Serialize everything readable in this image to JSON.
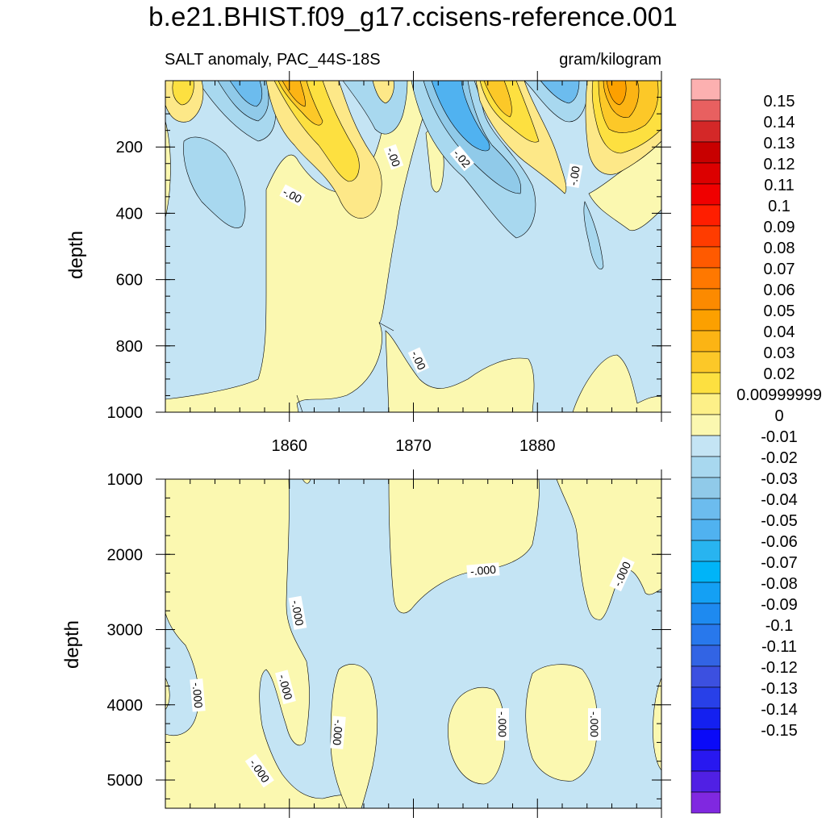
{
  "chart_data": {
    "type": "contour",
    "title": "b.e21.BHIST.f09_g17.ccisens-reference.001",
    "variable_label": "SALT anomaly, PAC_44S-18S",
    "units": "gram/kilogram",
    "x_ticks": [
      "1860",
      "1870",
      "1880"
    ],
    "xlim": [
      1850,
      1890
    ],
    "panels": [
      {
        "name": "upper",
        "ylabel": "depth",
        "ylim": [
          0,
          1000
        ],
        "y_ticks": [
          200,
          400,
          600,
          800,
          1000
        ],
        "y_tick_labels": [
          "200",
          "400",
          "600",
          "800",
          "1000"
        ],
        "contour_labels": [
          "-.00",
          "-.00",
          "-.02",
          "-.00",
          "-.00"
        ]
      },
      {
        "name": "lower",
        "ylabel": "depth",
        "ylim": [
          1000,
          5375
        ],
        "y_ticks": [
          1000,
          2000,
          3000,
          4000,
          5000
        ],
        "y_tick_labels": [
          "1000",
          "2000",
          "3000",
          "4000",
          "5000"
        ],
        "contour_labels": [
          "-.000",
          "-.000",
          "-.000",
          "-.000",
          "-.000",
          "-.000",
          "-.000",
          "-.000",
          "-.000"
        ]
      }
    ],
    "colorbar": {
      "levels": [
        "0.15",
        "0.14",
        "0.13",
        "0.12",
        "0.11",
        "0.1",
        "0.09",
        "0.08",
        "0.07",
        "0.06",
        "0.05",
        "0.04",
        "0.03",
        "0.02",
        "0.00999999",
        "0",
        "-0.01",
        "-0.02",
        "-0.03",
        "-0.04",
        "-0.05",
        "-0.06",
        "-0.07",
        "-0.08",
        "-0.09",
        "-0.1",
        "-0.11",
        "-0.12",
        "-0.13",
        "-0.14",
        "-0.15"
      ],
      "colors": [
        "#fcb0b0",
        "#e86060",
        "#d42828",
        "#c80000",
        "#dc0000",
        "#f00000",
        "#ff1e00",
        "#ff3c00",
        "#ff5a00",
        "#ff7800",
        "#fc8a00",
        "#fca000",
        "#fcb414",
        "#fcc828",
        "#fde040",
        "#fdf088",
        "#fbf8b0",
        "#c4e4f4",
        "#a8d8ef",
        "#90cae9",
        "#6cbcee",
        "#50b2f0",
        "#28b4f0",
        "#00b4f8",
        "#14a0f4",
        "#1e8af0",
        "#2878ec",
        "#3264e4",
        "#3c50e0",
        "#2840e8",
        "#1420f0",
        "#0a0af8",
        "#2818f0",
        "#5020e4",
        "#8028e0"
      ]
    },
    "fill_colors": {
      "zero_neg": "#c4e4f4",
      "zero_pos": "#fbf8b0",
      "neg1": "#a8d8ef",
      "neg2": "#90cae9",
      "neg3": "#6cbcee",
      "neg4": "#50b2f0",
      "pos1": "#fde888",
      "pos2": "#fde040",
      "pos3": "#fcc828",
      "pos4": "#fcb414",
      "pos5": "#fca000"
    }
  }
}
